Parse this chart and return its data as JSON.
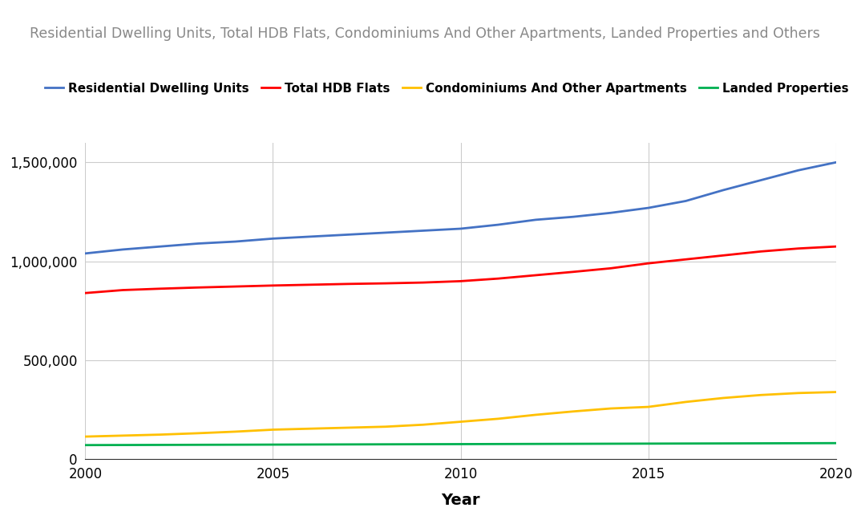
{
  "title": "Residential Dwelling Units, Total HDB Flats, Condominiums And Other Apartments, Landed Properties and Others",
  "xlabel": "Year",
  "ylabel": "",
  "series": [
    {
      "label": "Residential Dwelling Units",
      "color": "#4472C4",
      "years": [
        2000,
        2001,
        2002,
        2003,
        2004,
        2005,
        2006,
        2007,
        2008,
        2009,
        2010,
        2011,
        2012,
        2013,
        2014,
        2015,
        2016,
        2017,
        2018,
        2019,
        2020
      ],
      "values": [
        1040000,
        1060000,
        1075000,
        1090000,
        1100000,
        1115000,
        1125000,
        1135000,
        1145000,
        1155000,
        1165000,
        1185000,
        1210000,
        1225000,
        1245000,
        1270000,
        1305000,
        1360000,
        1410000,
        1460000,
        1500000
      ]
    },
    {
      "label": "Total HDB Flats",
      "color": "#FF0000",
      "years": [
        2000,
        2001,
        2002,
        2003,
        2004,
        2005,
        2006,
        2007,
        2008,
        2009,
        2010,
        2011,
        2012,
        2013,
        2014,
        2015,
        2016,
        2017,
        2018,
        2019,
        2020
      ],
      "values": [
        840000,
        855000,
        862000,
        868000,
        873000,
        878000,
        882000,
        886000,
        889000,
        893000,
        900000,
        913000,
        930000,
        947000,
        965000,
        990000,
        1010000,
        1030000,
        1050000,
        1065000,
        1075000
      ]
    },
    {
      "label": "Condominiums And Other Apartments",
      "color": "#FFC000",
      "years": [
        2000,
        2001,
        2002,
        2003,
        2004,
        2005,
        2006,
        2007,
        2008,
        2009,
        2010,
        2011,
        2012,
        2013,
        2014,
        2015,
        2016,
        2017,
        2018,
        2019,
        2020
      ],
      "values": [
        115000,
        120000,
        125000,
        132000,
        140000,
        150000,
        155000,
        160000,
        165000,
        175000,
        190000,
        205000,
        225000,
        242000,
        257000,
        265000,
        290000,
        310000,
        325000,
        335000,
        340000
      ]
    },
    {
      "label": "Landed Properties",
      "color": "#00B050",
      "years": [
        2000,
        2001,
        2002,
        2003,
        2004,
        2005,
        2006,
        2007,
        2008,
        2009,
        2010,
        2011,
        2012,
        2013,
        2014,
        2015,
        2016,
        2017,
        2018,
        2019,
        2020
      ],
      "values": [
        72000,
        72500,
        73000,
        73500,
        74000,
        74500,
        75000,
        75500,
        76000,
        76500,
        77000,
        77500,
        78000,
        78500,
        79000,
        79500,
        80000,
        80500,
        81000,
        81500,
        82000
      ]
    }
  ],
  "ylim": [
    0,
    1600000
  ],
  "yticks": [
    0,
    500000,
    1000000,
    1500000
  ],
  "xticks": [
    2000,
    2005,
    2010,
    2015,
    2020
  ],
  "background_color": "#FFFFFF",
  "grid_color": "#CCCCCC",
  "title_fontsize": 12.5,
  "legend_fontsize": 11,
  "tick_fontsize": 12,
  "xlabel_fontsize": 14
}
